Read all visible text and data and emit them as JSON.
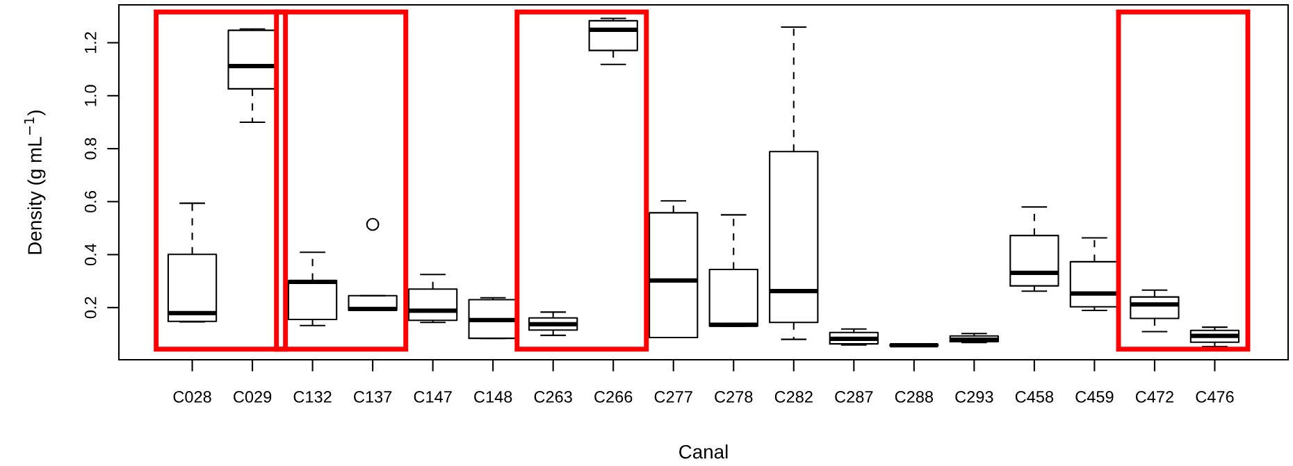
{
  "chart_data": {
    "type": "box",
    "xlabel": "Canal",
    "ylabel": "Density (g mL$^{−1}$)",
    "categories": [
      "C028",
      "C029",
      "C132",
      "C137",
      "C147",
      "C148",
      "C263",
      "C266",
      "C277",
      "C278",
      "C282",
      "C287",
      "C288",
      "C293",
      "C458",
      "C459",
      "C472",
      "C476"
    ],
    "boxes": [
      {
        "low": 0.146,
        "q1": 0.148,
        "median": 0.179,
        "q3": 0.401,
        "high": 0.594
      },
      {
        "low": 0.9,
        "q1": 1.026,
        "median": 1.112,
        "q3": 1.247,
        "high": 1.252
      },
      {
        "low": 0.132,
        "q1": 0.155,
        "median": 0.297,
        "q3": 0.302,
        "high": 0.409
      },
      {
        "low": 0.19,
        "q1": 0.19,
        "median": 0.195,
        "q3": 0.245,
        "high": 0.245,
        "outliers": [
          0.514
        ]
      },
      {
        "low": 0.144,
        "q1": 0.152,
        "median": 0.188,
        "q3": 0.27,
        "high": 0.325
      },
      {
        "low": 0.084,
        "q1": 0.084,
        "median": 0.153,
        "q3": 0.23,
        "high": 0.237
      },
      {
        "low": 0.095,
        "q1": 0.115,
        "median": 0.137,
        "q3": 0.161,
        "high": 0.183
      },
      {
        "low": 1.118,
        "q1": 1.171,
        "median": 1.249,
        "q3": 1.283,
        "high": 1.292
      },
      {
        "low": 0.087,
        "q1": 0.087,
        "median": 0.302,
        "q3": 0.558,
        "high": 0.603
      },
      {
        "low": 0.13,
        "q1": 0.13,
        "median": 0.135,
        "q3": 0.344,
        "high": 0.55
      },
      {
        "low": 0.08,
        "q1": 0.144,
        "median": 0.262,
        "q3": 0.789,
        "high": 1.259
      },
      {
        "low": 0.059,
        "q1": 0.063,
        "median": 0.082,
        "q3": 0.106,
        "high": 0.119
      },
      {
        "low": 0.056,
        "q1": 0.057,
        "median": 0.058,
        "q3": 0.059,
        "high": 0.06
      },
      {
        "low": 0.068,
        "q1": 0.071,
        "median": 0.079,
        "q3": 0.093,
        "high": 0.102
      },
      {
        "low": 0.262,
        "q1": 0.282,
        "median": 0.331,
        "q3": 0.472,
        "high": 0.58
      },
      {
        "low": 0.189,
        "q1": 0.203,
        "median": 0.253,
        "q3": 0.373,
        "high": 0.463
      },
      {
        "low": 0.109,
        "q1": 0.159,
        "median": 0.212,
        "q3": 0.24,
        "high": 0.266
      },
      {
        "low": 0.053,
        "q1": 0.069,
        "median": 0.093,
        "q3": 0.114,
        "high": 0.126
      }
    ],
    "ylim": [
      0.003,
      1.343
    ],
    "yticks": [
      0.2,
      0.4,
      0.6,
      0.8,
      {
        "value": 1.0,
        "label": "1.0"
      },
      1.2
    ],
    "grid": false
  }
}
